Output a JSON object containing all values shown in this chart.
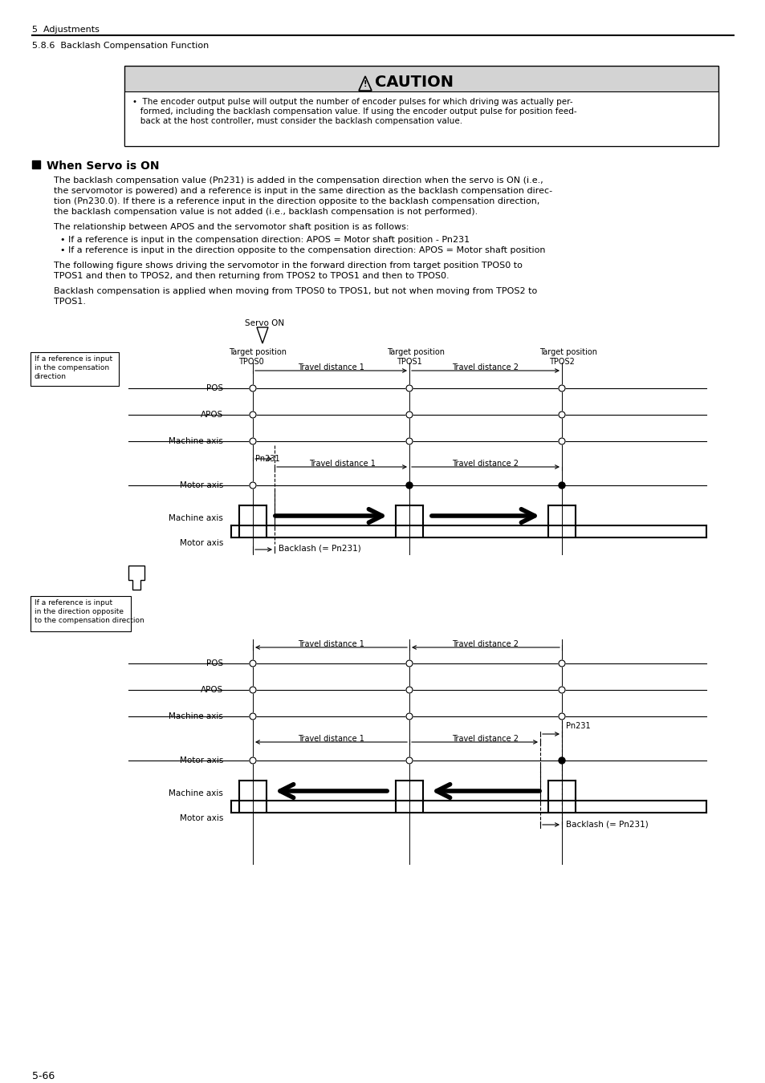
{
  "page_title": "5  Adjustments",
  "section_title": "5.8.6  Backlash Compensation Function",
  "caution_title": "CAUTION",
  "caution_text_lines": [
    "•  The encoder output pulse will output the number of encoder pulses for which driving was actually per-",
    "   formed, including the backlash compensation value. If using the encoder output pulse for position feed-",
    "   back at the host controller, must consider the backlash compensation value."
  ],
  "section_heading": "When Servo is ON",
  "body_text1_lines": [
    "The backlash compensation value (Pn231) is added in the compensation direction when the servo is ON (i.e.,",
    "the servomotor is powered) and a reference is input in the same direction as the backlash compensation direc-",
    "tion (Pn230.0). If there is a reference input in the direction opposite to the backlash compensation direction,",
    "the backlash compensation value is not added (i.e., backlash compensation is not performed)."
  ],
  "body_text2": "The relationship between APOS and the servomotor shaft position is as follows:",
  "bullet1": "• If a reference is input in the compensation direction: APOS = Motor shaft position - Pn231",
  "bullet2": "• If a reference is input in the direction opposite to the compensation direction: APOS = Motor shaft position",
  "body_text3_lines": [
    "The following figure shows driving the servomotor in the forward direction from target position TPOS0 to",
    "TPOS1 and then to TPOS2, and then returning from TPOS2 to TPOS1 and then to TPOS0."
  ],
  "body_text4_lines": [
    "Backlash compensation is applied when moving from TPOS0 to TPOS1, but not when moving from TPOS2 to",
    "TPOS1."
  ],
  "page_number": "5-66",
  "bg_color": "#ffffff",
  "text_color": "#000000",
  "caution_bg": "#d3d3d3",
  "caution_border": "#000000"
}
